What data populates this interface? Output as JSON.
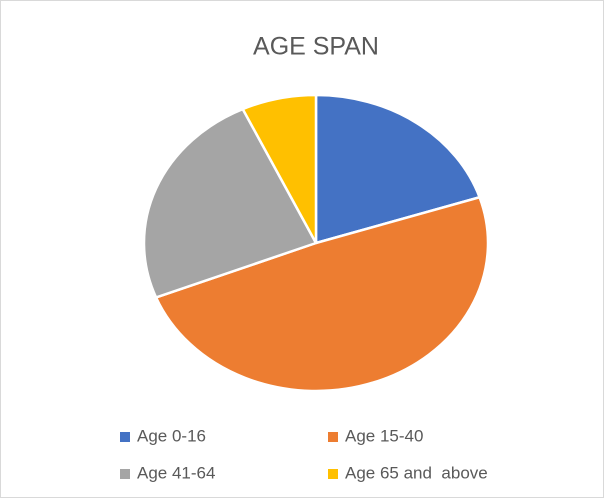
{
  "chart_data": {
    "type": "pie",
    "title": "AGE SPAN",
    "categories": [
      "Age 0-16",
      "Age 15-40",
      "Age 41-64",
      "Age 65 and  above"
    ],
    "values": [
      20,
      49,
      24,
      7
    ],
    "colors": [
      "#4472c4",
      "#ed7d31",
      "#a5a5a5",
      "#ffc000"
    ],
    "legend": "bottom"
  }
}
